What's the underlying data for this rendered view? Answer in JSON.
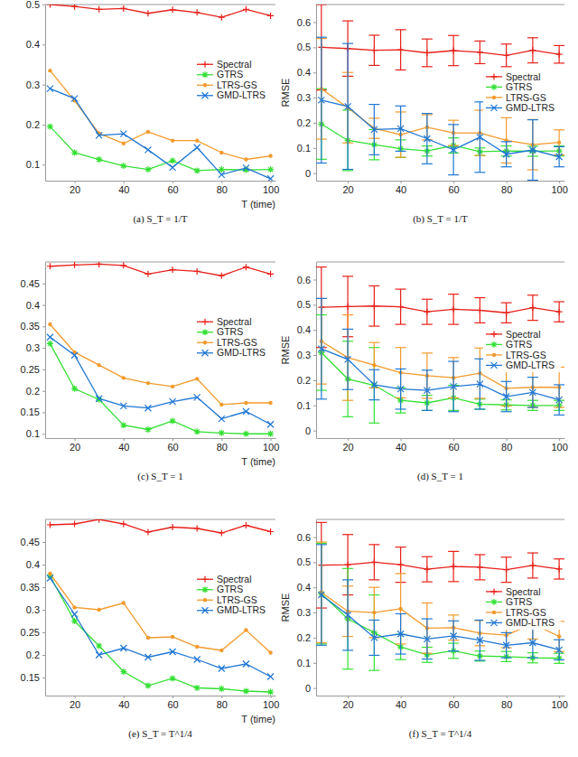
{
  "chart_data": [
    {
      "type": "line",
      "title": "(a) S_T = 1/T",
      "x_label": "T (time)",
      "legend": "right",
      "grid": false,
      "x": [
        10,
        20,
        30,
        40,
        50,
        60,
        70,
        80,
        90,
        100
      ],
      "xlim": [
        8,
        102
      ],
      "xticks": [
        20,
        40,
        60,
        80,
        100
      ],
      "ylim": [
        0.06,
        0.5
      ],
      "yticks": [
        0.1,
        0.2,
        0.3,
        0.4,
        0.5
      ],
      "series": [
        {
          "name": "Spectral",
          "color": "#e8201a",
          "marker": "plus",
          "values": [
            0.5,
            0.495,
            0.488,
            0.49,
            0.478,
            0.487,
            0.48,
            0.468,
            0.488,
            0.472
          ]
        },
        {
          "name": "GTRS",
          "color": "#33e033",
          "marker": "star",
          "values": [
            0.195,
            0.13,
            0.113,
            0.097,
            0.088,
            0.11,
            0.085,
            0.088,
            0.087,
            0.088
          ]
        },
        {
          "name": "LTRS-GS",
          "color": "#f39a2b",
          "marker": "circle",
          "values": [
            0.335,
            0.26,
            0.178,
            0.153,
            0.182,
            0.16,
            0.16,
            0.13,
            0.113,
            0.122
          ]
        },
        {
          "name": "GMD-LTRS",
          "color": "#1f77d4",
          "marker": "x",
          "values": [
            0.29,
            0.265,
            0.173,
            0.177,
            0.137,
            0.093,
            0.143,
            0.075,
            0.092,
            0.065
          ]
        }
      ]
    },
    {
      "type": "line",
      "title": "(b) S_T = 1/T",
      "y_label": "RMSE",
      "legend": "right",
      "grid": false,
      "x": [
        10,
        20,
        30,
        40,
        50,
        60,
        70,
        80,
        90,
        100
      ],
      "xlim": [
        8,
        102
      ],
      "xticks": [
        20,
        40,
        60,
        80,
        100
      ],
      "ylim": [
        -0.03,
        0.67
      ],
      "yticks": [
        0,
        0.1,
        0.2,
        0.3,
        0.4,
        0.5,
        0.6
      ],
      "series": [
        {
          "name": "Spectral",
          "color": "#e8201a",
          "marker": "plus",
          "values": [
            0.5,
            0.495,
            0.488,
            0.49,
            0.478,
            0.487,
            0.48,
            0.468,
            0.488,
            0.472
          ],
          "errors": [
            0.17,
            0.11,
            0.06,
            0.08,
            0.055,
            0.06,
            0.045,
            0.045,
            0.05,
            0.035
          ]
        },
        {
          "name": "GTRS",
          "color": "#33e033",
          "marker": "star",
          "values": [
            0.195,
            0.13,
            0.113,
            0.097,
            0.088,
            0.11,
            0.085,
            0.088,
            0.087,
            0.088
          ],
          "errors": [
            0.14,
            0.12,
            0.06,
            0.035,
            0.02,
            0.03,
            0.015,
            0.02,
            0.02,
            0.02
          ]
        },
        {
          "name": "LTRS-GS",
          "color": "#f39a2b",
          "marker": "circle",
          "values": [
            0.335,
            0.26,
            0.178,
            0.153,
            0.182,
            0.16,
            0.16,
            0.13,
            0.113,
            0.122
          ],
          "errors": [
            0.2,
            0.14,
            0.04,
            0.09,
            0.05,
            0.05,
            0.09,
            0.09,
            0.1,
            0.05
          ]
        },
        {
          "name": "GMD-LTRS",
          "color": "#1f77d4",
          "marker": "x",
          "values": [
            0.29,
            0.265,
            0.173,
            0.177,
            0.137,
            0.093,
            0.143,
            0.075,
            0.092,
            0.065
          ],
          "errors": [
            0.25,
            0.25,
            0.1,
            0.09,
            0.1,
            0.1,
            0.14,
            0.05,
            0.12,
            0.04
          ]
        }
      ]
    },
    {
      "type": "line",
      "title": "(c) S_T = 1",
      "x_label": "T (time)",
      "legend": "right",
      "grid": false,
      "x": [
        10,
        20,
        30,
        40,
        50,
        60,
        70,
        80,
        90,
        100
      ],
      "xlim": [
        8,
        102
      ],
      "xticks": [
        20,
        40,
        60,
        80,
        100
      ],
      "ylim": [
        0.09,
        0.5
      ],
      "yticks": [
        0.1,
        0.15,
        0.2,
        0.25,
        0.3,
        0.35,
        0.4,
        0.45
      ],
      "series": [
        {
          "name": "Spectral",
          "color": "#e8201a",
          "marker": "plus",
          "values": [
            0.49,
            0.493,
            0.495,
            0.492,
            0.472,
            0.482,
            0.478,
            0.468,
            0.488,
            0.472
          ]
        },
        {
          "name": "GTRS",
          "color": "#33e033",
          "marker": "star",
          "values": [
            0.31,
            0.205,
            0.18,
            0.12,
            0.11,
            0.13,
            0.105,
            0.102,
            0.1,
            0.1
          ]
        },
        {
          "name": "LTRS-GS",
          "color": "#f39a2b",
          "marker": "circle",
          "values": [
            0.355,
            0.29,
            0.26,
            0.23,
            0.218,
            0.21,
            0.228,
            0.168,
            0.172,
            0.172
          ]
        },
        {
          "name": "GMD-LTRS",
          "color": "#1f77d4",
          "marker": "x",
          "values": [
            0.325,
            0.283,
            0.182,
            0.165,
            0.16,
            0.175,
            0.185,
            0.135,
            0.152,
            0.122
          ]
        }
      ]
    },
    {
      "type": "line",
      "title": "(d) S_T = 1",
      "y_label": "RMSE",
      "legend": "right",
      "grid": false,
      "x": [
        10,
        20,
        30,
        40,
        50,
        60,
        70,
        80,
        90,
        100
      ],
      "xlim": [
        8,
        102
      ],
      "xticks": [
        20,
        40,
        60,
        80,
        100
      ],
      "ylim": [
        -0.03,
        0.67
      ],
      "yticks": [
        0,
        0.1,
        0.2,
        0.3,
        0.4,
        0.5,
        0.6
      ],
      "series": [
        {
          "name": "Spectral",
          "color": "#e8201a",
          "marker": "plus",
          "values": [
            0.49,
            0.493,
            0.495,
            0.492,
            0.472,
            0.482,
            0.478,
            0.468,
            0.488,
            0.472
          ],
          "errors": [
            0.16,
            0.12,
            0.08,
            0.07,
            0.05,
            0.06,
            0.05,
            0.04,
            0.05,
            0.04
          ]
        },
        {
          "name": "GTRS",
          "color": "#33e033",
          "marker": "star",
          "values": [
            0.31,
            0.205,
            0.18,
            0.12,
            0.11,
            0.13,
            0.105,
            0.102,
            0.1,
            0.1
          ],
          "errors": [
            0.15,
            0.15,
            0.15,
            0.05,
            0.03,
            0.05,
            0.02,
            0.02,
            0.02,
            0.02
          ]
        },
        {
          "name": "LTRS-GS",
          "color": "#f39a2b",
          "marker": "circle",
          "values": [
            0.355,
            0.29,
            0.26,
            0.23,
            0.218,
            0.21,
            0.228,
            0.168,
            0.172,
            0.172
          ],
          "errors": [
            0.17,
            0.17,
            0.09,
            0.1,
            0.09,
            0.08,
            0.1,
            0.07,
            0.08,
            0.08
          ]
        },
        {
          "name": "GMD-LTRS",
          "color": "#1f77d4",
          "marker": "x",
          "values": [
            0.325,
            0.283,
            0.182,
            0.165,
            0.16,
            0.175,
            0.185,
            0.135,
            0.152,
            0.122
          ],
          "errors": [
            0.2,
            0.12,
            0.06,
            0.08,
            0.08,
            0.1,
            0.1,
            0.06,
            0.06,
            0.06
          ]
        }
      ]
    },
    {
      "type": "line",
      "title": "(e) S_T = T^1/4",
      "x_label": "T (time)",
      "legend": "right",
      "grid": false,
      "x": [
        10,
        20,
        30,
        40,
        50,
        60,
        70,
        80,
        90,
        100
      ],
      "xlim": [
        8,
        102
      ],
      "xticks": [
        20,
        40,
        60,
        80,
        100
      ],
      "ylim": [
        0.11,
        0.5
      ],
      "yticks": [
        0.15,
        0.2,
        0.25,
        0.3,
        0.35,
        0.4,
        0.45
      ],
      "series": [
        {
          "name": "Spectral",
          "color": "#e8201a",
          "marker": "plus",
          "values": [
            0.488,
            0.49,
            0.5,
            0.49,
            0.472,
            0.483,
            0.48,
            0.47,
            0.487,
            0.473
          ]
        },
        {
          "name": "GTRS",
          "color": "#33e033",
          "marker": "star",
          "values": [
            0.375,
            0.275,
            0.22,
            0.163,
            0.132,
            0.148,
            0.127,
            0.125,
            0.12,
            0.118
          ]
        },
        {
          "name": "LTRS-GS",
          "color": "#f39a2b",
          "marker": "circle",
          "values": [
            0.38,
            0.305,
            0.3,
            0.315,
            0.238,
            0.24,
            0.218,
            0.21,
            0.255,
            0.205
          ]
        },
        {
          "name": "GMD-LTRS",
          "color": "#1f77d4",
          "marker": "x",
          "values": [
            0.37,
            0.29,
            0.2,
            0.215,
            0.195,
            0.207,
            0.19,
            0.17,
            0.18,
            0.152
          ]
        }
      ]
    },
    {
      "type": "line",
      "title": "(f) S_T = T^1/4",
      "y_label": "RMSE",
      "legend": "right",
      "grid": false,
      "x": [
        10,
        20,
        30,
        40,
        50,
        60,
        70,
        80,
        90,
        100
      ],
      "xlim": [
        8,
        102
      ],
      "xticks": [
        20,
        40,
        60,
        80,
        100
      ],
      "ylim": [
        -0.03,
        0.67
      ],
      "yticks": [
        0,
        0.1,
        0.2,
        0.3,
        0.4,
        0.5,
        0.6
      ],
      "series": [
        {
          "name": "Spectral",
          "color": "#e8201a",
          "marker": "plus",
          "values": [
            0.488,
            0.49,
            0.5,
            0.49,
            0.472,
            0.483,
            0.48,
            0.47,
            0.487,
            0.473
          ],
          "errors": [
            0.17,
            0.12,
            0.07,
            0.07,
            0.05,
            0.06,
            0.05,
            0.05,
            0.05,
            0.04
          ]
        },
        {
          "name": "GTRS",
          "color": "#33e033",
          "marker": "star",
          "values": [
            0.375,
            0.275,
            0.22,
            0.163,
            0.132,
            0.148,
            0.127,
            0.125,
            0.12,
            0.118
          ],
          "errors": [
            0.2,
            0.2,
            0.15,
            0.05,
            0.03,
            0.03,
            0.02,
            0.02,
            0.02,
            0.02
          ]
        },
        {
          "name": "LTRS-GS",
          "color": "#f39a2b",
          "marker": "circle",
          "values": [
            0.38,
            0.305,
            0.3,
            0.315,
            0.238,
            0.24,
            0.218,
            0.21,
            0.255,
            0.205
          ],
          "errors": [
            0.2,
            0.1,
            0.1,
            0.14,
            0.1,
            0.05,
            0.05,
            0.05,
            0.06,
            0.06
          ]
        },
        {
          "name": "GMD-LTRS",
          "color": "#1f77d4",
          "marker": "x",
          "values": [
            0.37,
            0.29,
            0.2,
            0.215,
            0.195,
            0.207,
            0.19,
            0.17,
            0.18,
            0.152
          ],
          "errors": [
            0.2,
            0.14,
            0.07,
            0.08,
            0.08,
            0.06,
            0.08,
            0.05,
            0.06,
            0.04
          ]
        }
      ]
    }
  ]
}
